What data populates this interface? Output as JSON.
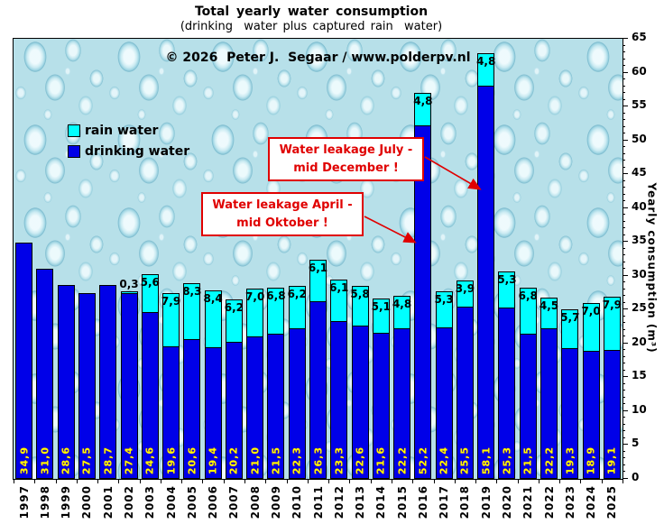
{
  "header": {
    "title": "Total yearly water consumption",
    "subtitle": "(drinking  water plus captured rain  water)",
    "copyright": "© 2026  Peter J.  Segaar / www.polderpv.nl"
  },
  "legend": {
    "rain_label": "rain water",
    "drinking_label": "drinking water"
  },
  "annotations": [
    {
      "text": "Water leakage July -\nmid December !",
      "target_year": "2019"
    },
    {
      "text": "Water leakage April -\nmid Oktober !",
      "target_year": "2016"
    }
  ],
  "colors": {
    "drinking_water": "#0000e8",
    "rain_water": "#00ffff",
    "bar_value_text": "#ffff00",
    "annotation_red": "#e00000",
    "plot_background": "#b7e0e9"
  },
  "chart_data": {
    "type": "bar",
    "stacked": true,
    "title": "Total yearly water consumption",
    "subtitle": "(drinking  water plus captured rain  water)",
    "ylabel": "Yearly consumption (m³)",
    "ylim": [
      0,
      65
    ],
    "ytick_major_step": 5,
    "ytick_minor_step": 1,
    "grid": false,
    "legend_position": "upper left",
    "categories": [
      "1997",
      "1998",
      "1999",
      "2000",
      "2001",
      "2002",
      "2003",
      "2004",
      "2005",
      "2006",
      "2007",
      "2008",
      "2009",
      "2010",
      "2011",
      "2012",
      "2013",
      "2014",
      "2015",
      "2016",
      "2017",
      "2018",
      "2019",
      "2020",
      "2021",
      "2022",
      "2023",
      "2024",
      "2025"
    ],
    "series": [
      {
        "name": "drinking water",
        "values": [
          34.9,
          31.0,
          28.6,
          27.5,
          28.7,
          27.4,
          24.6,
          19.6,
          20.6,
          19.4,
          20.2,
          21.0,
          21.5,
          22.3,
          26.3,
          23.3,
          22.6,
          21.6,
          22.2,
          52.2,
          22.4,
          25.5,
          58.1,
          25.3,
          21.5,
          22.2,
          19.3,
          18.9,
          19.1
        ]
      },
      {
        "name": "rain water",
        "values": [
          0,
          0,
          0,
          0,
          0,
          0.3,
          5.6,
          7.9,
          8.3,
          8.4,
          6.2,
          7.0,
          6.8,
          6.2,
          6.1,
          6.1,
          5.8,
          5.1,
          4.8,
          4.8,
          5.3,
          3.9,
          4.8,
          5.3,
          6.8,
          4.5,
          5.7,
          7.0,
          7.9
        ]
      }
    ]
  }
}
